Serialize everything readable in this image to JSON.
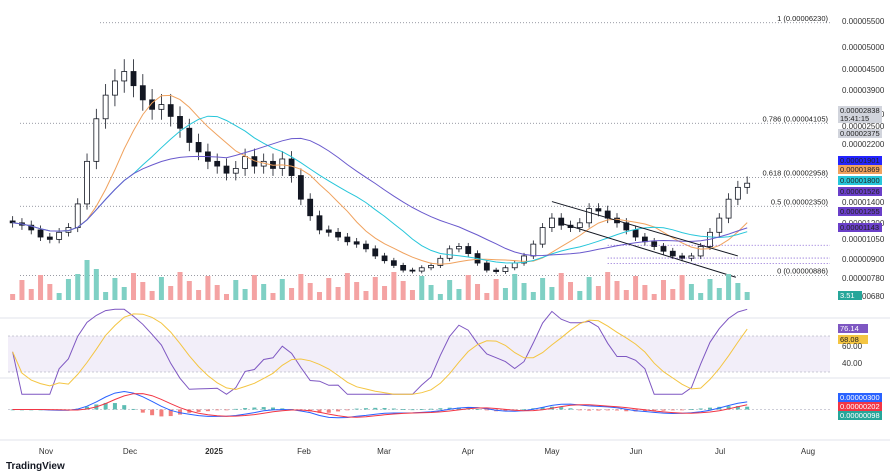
{
  "chart_data": {
    "type": "candlestick",
    "x_labels": [
      "Nov",
      "Dec",
      "2025",
      "Feb",
      "Mar",
      "Apr",
      "May",
      "Jun",
      "Jul",
      "Aug"
    ],
    "price_axis_labels": [
      "0.00005500",
      "0.00005000",
      "0.00004500",
      "0.00003900",
      "0.00003300",
      "0.00002500",
      "0.00002200",
      "0.00001400",
      "0.00001200",
      "0.00001050",
      "0.00000900",
      "0.00000780",
      "0.00000680"
    ],
    "fib_levels": [
      {
        "label": "1 (0.00006230)",
        "price": 6.23e-05
      },
      {
        "label": "0.786 (0.00004105)",
        "price": 4.105e-05
      },
      {
        "label": "0.618 (0.00002958)",
        "price": 2.958e-05
      },
      {
        "label": "0.5 (0.00002350)",
        "price": 2.35e-05
      },
      {
        "label": "0 (0.00000886)",
        "price": 8.86e-06
      }
    ],
    "price_tags": [
      {
        "value": "0.00002838",
        "color": "#d1d4dc",
        "text_color": "#131722"
      },
      {
        "value": "15:41:15",
        "color": "#d1d4dc",
        "text_color": "#131722"
      },
      {
        "value": "0.00002375",
        "color": "#d1d4dc",
        "text_color": "#131722"
      },
      {
        "value": "0.00001901",
        "color": "#2424ff",
        "text_color": "#ffffff"
      },
      {
        "value": "0.00001869",
        "color": "#f0a25e",
        "text_color": "#ffffff"
      },
      {
        "value": "0.00001800",
        "color": "#26c6da",
        "text_color": "#131722"
      },
      {
        "value": "0.00001526",
        "color": "#6a3fc9",
        "text_color": "#ffffff"
      },
      {
        "value": "0.00001255",
        "color": "#6a3fc9",
        "text_color": "#ffffff"
      },
      {
        "value": "0.00001143",
        "color": "#6a3fc9",
        "text_color": "#ffffff"
      }
    ],
    "volume_tag": "3.51",
    "rsi": {
      "value_tag": "76.14",
      "ma_tag": "68.08",
      "axis_labels": [
        "60.00",
        "40.00"
      ]
    },
    "macd": {
      "tags": [
        "0.00000300",
        "0.00000202",
        "0.00000098"
      ]
    },
    "ma_colors": {
      "ma50": "#f0a25e",
      "ma100": "#26c6da",
      "ma200": "#6a5acd"
    },
    "candle_colors": {
      "up": "#131722",
      "down": "#131722"
    },
    "volume_colors": {
      "up": "#7fd0c4",
      "down": "#f4a3a3"
    },
    "close_series": [
      2e-05,
      1.95e-05,
      1.85e-05,
      1.7e-05,
      1.65e-05,
      1.8e-05,
      1.9e-05,
      2.4e-05,
      3.3e-05,
      4.2e-05,
      4.7e-05,
      5e-05,
      5.2e-05,
      4.9e-05,
      4.6e-05,
      4.4e-05,
      4.5e-05,
      4.25e-05,
      4e-05,
      3.7e-05,
      3.5e-05,
      3.3e-05,
      3.2e-05,
      3.05e-05,
      3.15e-05,
      3.4e-05,
      3.2e-05,
      3.3e-05,
      3.15e-05,
      3.35e-05,
      3e-05,
      2.5e-05,
      2.15e-05,
      1.85e-05,
      1.8e-05,
      1.7e-05,
      1.6e-05,
      1.55e-05,
      1.45e-05,
      1.3e-05,
      1.2e-05,
      1.1e-05,
      1e-05,
      9.8e-06,
      1.05e-05,
      1.1e-05,
      1.25e-05,
      1.45e-05,
      1.5e-05,
      1.35e-05,
      1.15e-05,
      1e-05,
      9.7e-06,
      1.05e-05,
      1.15e-05,
      1.3e-05,
      1.55e-05,
      1.9e-05,
      2.1e-05,
      1.95e-05,
      1.9e-05,
      2e-05,
      2.3e-05,
      2.25e-05,
      2.1e-05,
      2e-05,
      1.85e-05,
      1.7e-05,
      1.6e-05,
      1.5e-05,
      1.4e-05,
      1.3e-05,
      1.25e-05,
      1.3e-05,
      1.5e-05,
      1.8e-05,
      2.1e-05,
      2.5e-05,
      2.75e-05,
      2.838e-05
    ]
  }
}
